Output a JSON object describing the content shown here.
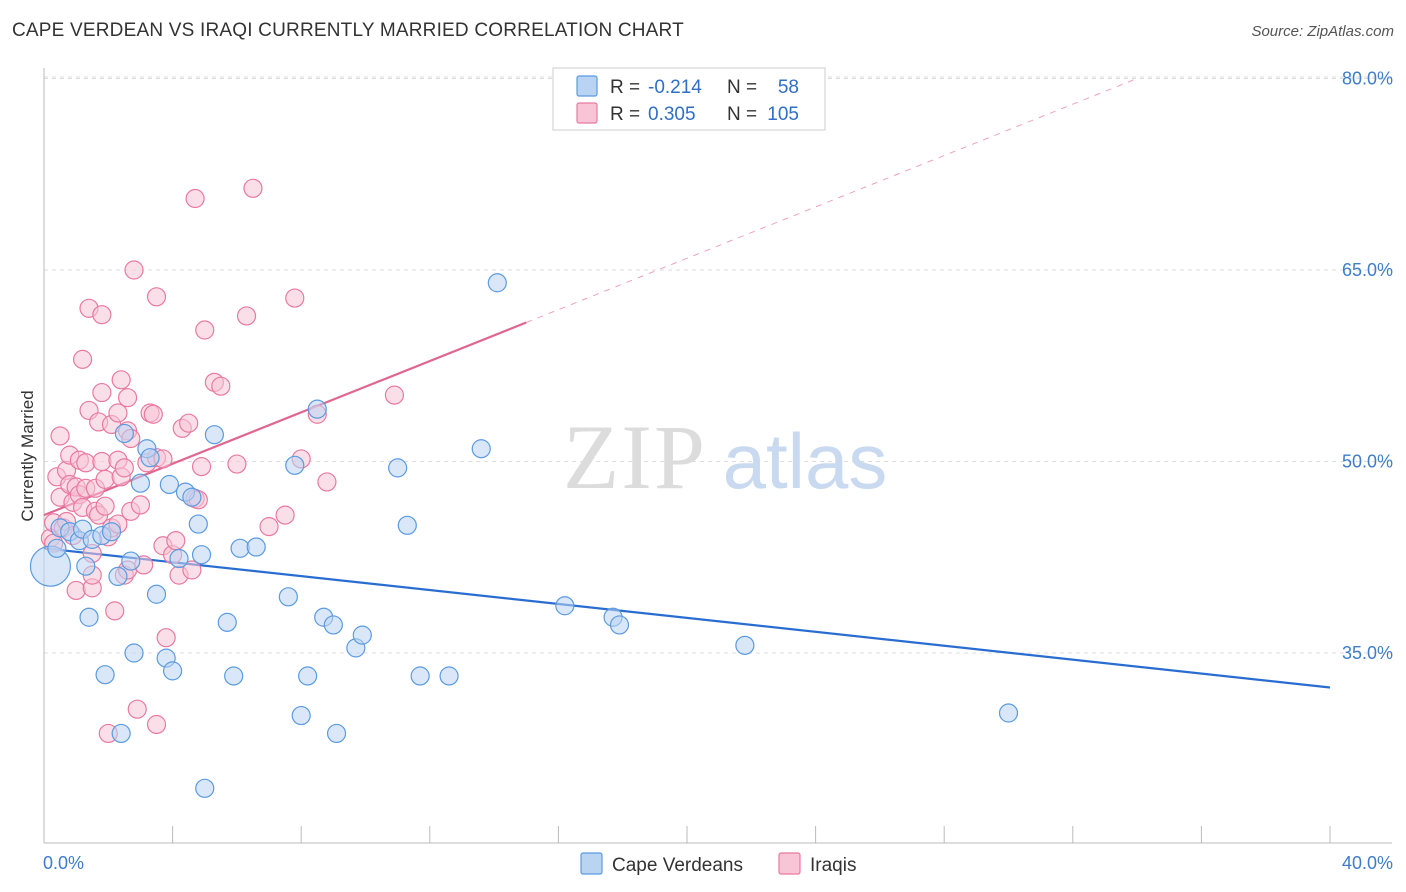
{
  "title": "CAPE VERDEAN VS IRAQI CURRENTLY MARRIED CORRELATION CHART",
  "source": "Source: ZipAtlas.com",
  "watermark": {
    "zip": "ZIP",
    "atlas": "atlas"
  },
  "colors": {
    "blue": "#5b9be0",
    "blue_fill": "#b9d4f3",
    "blue_line": "#2a6dd1",
    "pink": "#e87aa0",
    "pink_fill": "#f7c5d6",
    "pink_line": "#e06690",
    "grid": "#dddddd",
    "axis_text": "#3f7cc9"
  },
  "legend": {
    "rows": [
      {
        "r_label": "R =",
        "r_value": "-0.214",
        "n_label": "N =",
        "n_value": "58"
      },
      {
        "r_label": "R =",
        "r_value": "0.305",
        "n_label": "N =",
        "n_value": "105"
      }
    ]
  },
  "bottom_legend": [
    "Cape Verdeans",
    "Iraqis"
  ],
  "chart_data": {
    "type": "scatter",
    "xlabel": "",
    "ylabel": "Currently Married",
    "xlim": [
      0,
      40
    ],
    "ylim": [
      22,
      82
    ],
    "x_tick_labels": [
      "0.0%",
      "40.0%"
    ],
    "y_ticks": [
      35,
      50,
      65,
      80
    ],
    "y_tick_labels": [
      "35.0%",
      "50.0%",
      "65.0%",
      "80.0%"
    ],
    "series": [
      {
        "name": "Cape Verdeans",
        "r": -0.214,
        "n": 58,
        "trend": {
          "x": [
            0,
            40
          ],
          "y": [
            43.2,
            32.3
          ],
          "solid_to": 40
        },
        "points": [
          [
            0.2,
            41.8,
            "big"
          ],
          [
            0.4,
            43.2
          ],
          [
            0.5,
            44.8
          ],
          [
            0.8,
            44.5
          ],
          [
            1.1,
            43.8
          ],
          [
            1.2,
            44.7
          ],
          [
            1.3,
            41.8
          ],
          [
            1.4,
            37.8
          ],
          [
            1.5,
            43.9
          ],
          [
            1.8,
            44.2
          ],
          [
            1.9,
            33.3
          ],
          [
            2.1,
            44.5
          ],
          [
            2.3,
            41.0
          ],
          [
            2.4,
            28.7
          ],
          [
            2.5,
            52.2
          ],
          [
            2.7,
            42.2
          ],
          [
            2.8,
            35.0
          ],
          [
            3.0,
            48.3
          ],
          [
            3.2,
            51.0
          ],
          [
            3.3,
            50.3
          ],
          [
            3.5,
            39.6
          ],
          [
            3.8,
            34.6
          ],
          [
            3.9,
            48.2
          ],
          [
            4.0,
            33.6
          ],
          [
            4.2,
            42.4
          ],
          [
            4.4,
            47.6
          ],
          [
            4.6,
            47.2
          ],
          [
            4.8,
            45.1
          ],
          [
            4.9,
            42.7
          ],
          [
            5.0,
            24.4
          ],
          [
            5.3,
            52.1
          ],
          [
            5.7,
            37.4
          ],
          [
            5.9,
            33.2
          ],
          [
            6.1,
            43.2
          ],
          [
            6.6,
            43.3
          ],
          [
            7.6,
            39.4
          ],
          [
            7.8,
            49.7
          ],
          [
            8.0,
            30.1
          ],
          [
            8.2,
            33.2
          ],
          [
            8.5,
            54.1
          ],
          [
            8.7,
            37.8
          ],
          [
            9.0,
            37.2
          ],
          [
            9.1,
            28.7
          ],
          [
            9.7,
            35.4
          ],
          [
            9.9,
            36.4
          ],
          [
            11.0,
            49.5
          ],
          [
            11.3,
            45.0
          ],
          [
            11.7,
            33.2
          ],
          [
            12.6,
            33.2
          ],
          [
            13.6,
            51.0
          ],
          [
            14.1,
            64.0
          ],
          [
            16.2,
            38.7
          ],
          [
            17.7,
            37.8
          ],
          [
            17.9,
            37.2
          ],
          [
            21.8,
            35.6
          ],
          [
            30.0,
            30.3
          ]
        ]
      },
      {
        "name": "Iraqis",
        "r": 0.305,
        "n": 105,
        "trend": {
          "x": [
            0,
            34
          ],
          "y": [
            45.8,
            80.0
          ],
          "solid_to": 15
        },
        "points": [
          [
            0.2,
            44.0
          ],
          [
            0.3,
            45.2
          ],
          [
            0.3,
            43.6
          ],
          [
            0.4,
            48.8
          ],
          [
            0.5,
            47.2
          ],
          [
            0.5,
            52.0
          ],
          [
            0.6,
            44.8
          ],
          [
            0.7,
            45.3
          ],
          [
            0.7,
            49.3
          ],
          [
            0.8,
            48.2
          ],
          [
            0.8,
            50.5
          ],
          [
            0.9,
            46.8
          ],
          [
            0.9,
            44.2
          ],
          [
            1.0,
            48.0
          ],
          [
            1.0,
            39.9
          ],
          [
            1.1,
            47.4
          ],
          [
            1.1,
            50.1
          ],
          [
            1.2,
            58.0
          ],
          [
            1.2,
            46.4
          ],
          [
            1.3,
            49.9
          ],
          [
            1.3,
            47.9
          ],
          [
            1.4,
            62.0
          ],
          [
            1.4,
            54.0
          ],
          [
            1.5,
            40.1
          ],
          [
            1.5,
            42.8
          ],
          [
            1.5,
            41.1
          ],
          [
            1.6,
            47.9
          ],
          [
            1.6,
            46.1
          ],
          [
            1.7,
            53.1
          ],
          [
            1.7,
            45.8
          ],
          [
            1.8,
            50.0
          ],
          [
            1.8,
            55.4
          ],
          [
            1.8,
            61.5
          ],
          [
            1.9,
            48.6
          ],
          [
            1.9,
            46.5
          ],
          [
            2.0,
            28.7
          ],
          [
            2.0,
            44.1
          ],
          [
            2.1,
            52.9
          ],
          [
            2.1,
            44.8
          ],
          [
            2.2,
            38.3
          ],
          [
            2.3,
            53.8
          ],
          [
            2.3,
            50.1
          ],
          [
            2.3,
            45.1
          ],
          [
            2.4,
            56.4
          ],
          [
            2.4,
            48.8
          ],
          [
            2.5,
            49.5
          ],
          [
            2.5,
            41.1
          ],
          [
            2.6,
            55.0
          ],
          [
            2.6,
            52.4
          ],
          [
            2.6,
            41.5
          ],
          [
            2.7,
            51.8
          ],
          [
            2.7,
            46.1
          ],
          [
            2.8,
            65.0
          ],
          [
            2.9,
            30.6
          ],
          [
            3.0,
            46.6
          ],
          [
            3.1,
            41.9
          ],
          [
            3.2,
            49.9
          ],
          [
            3.3,
            53.8
          ],
          [
            3.4,
            53.7
          ],
          [
            3.5,
            29.4
          ],
          [
            3.5,
            62.9
          ],
          [
            3.5,
            50.3
          ],
          [
            3.7,
            43.4
          ],
          [
            3.7,
            50.2
          ],
          [
            3.8,
            36.2
          ],
          [
            4.0,
            42.7
          ],
          [
            4.1,
            43.8
          ],
          [
            4.2,
            41.1
          ],
          [
            4.3,
            52.6
          ],
          [
            4.5,
            53.0
          ],
          [
            4.6,
            41.5
          ],
          [
            4.7,
            70.6
          ],
          [
            4.7,
            47.1
          ],
          [
            4.8,
            47.0
          ],
          [
            4.9,
            49.6
          ],
          [
            5.0,
            60.3
          ],
          [
            5.3,
            56.2
          ],
          [
            5.5,
            55.9
          ],
          [
            6.0,
            49.8
          ],
          [
            6.3,
            61.4
          ],
          [
            6.5,
            71.4
          ],
          [
            7.0,
            44.9
          ],
          [
            7.5,
            45.8
          ],
          [
            7.8,
            62.8
          ],
          [
            8.0,
            50.2
          ],
          [
            8.5,
            53.7
          ],
          [
            8.8,
            48.4
          ],
          [
            10.9,
            55.2
          ]
        ]
      }
    ]
  }
}
